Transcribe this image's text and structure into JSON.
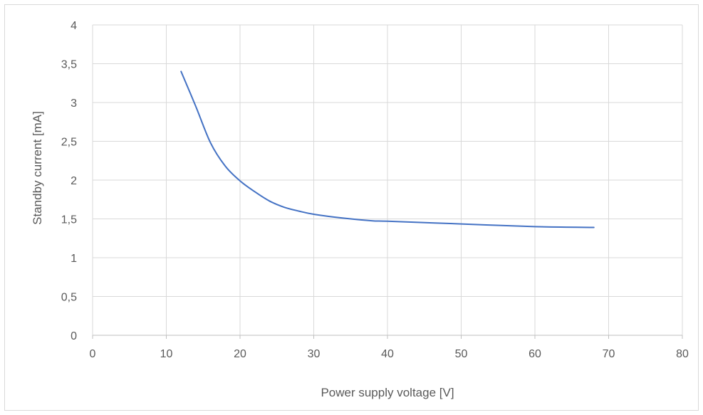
{
  "chart_data": {
    "type": "line",
    "title": "",
    "xlabel": "Power supply voltage [V]",
    "ylabel": "Standby current [mA]",
    "xlim": [
      0,
      80
    ],
    "ylim": [
      0,
      4
    ],
    "x_ticks": [
      "0",
      "10",
      "20",
      "30",
      "40",
      "50",
      "60",
      "70",
      "80"
    ],
    "y_ticks": [
      "0",
      "0,5",
      "1",
      "1,5",
      "2",
      "2,5",
      "3",
      "3,5",
      "4"
    ],
    "grid": true,
    "legend": "none",
    "series": [
      {
        "color": "#4472c4",
        "x": [
          12,
          14,
          16,
          18,
          20,
          22,
          24,
          26,
          28,
          30,
          34,
          38,
          40,
          50,
          60,
          68
        ],
        "y": [
          3.4,
          2.95,
          2.48,
          2.18,
          1.99,
          1.85,
          1.73,
          1.65,
          1.6,
          1.56,
          1.51,
          1.475,
          1.47,
          1.435,
          1.4,
          1.39
        ]
      }
    ]
  }
}
